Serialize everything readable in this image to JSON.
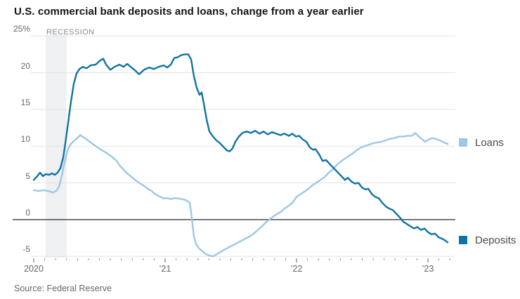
{
  "title": "U.S. commercial bank deposits and loans, change from a year earlier",
  "source": "Source: Federal Reserve",
  "legend": {
    "loans_label": "Loans",
    "deposits_label": "Deposits"
  },
  "colors": {
    "loans": "#9cc7e6",
    "deposits": "#1173a2",
    "recession_band": "#eef0f1",
    "gridline": "#e3e3e3",
    "zero_line": "#4a4a4a",
    "tick": "#8f8f8f"
  },
  "chart_data": {
    "type": "line",
    "title": "U.S. commercial bank deposits and loans, change from a year earlier",
    "xlabel": "",
    "ylabel": "percent change from a year earlier",
    "x_range": [
      2020.0,
      2023.21
    ],
    "y_range": [
      -5.4,
      25.3
    ],
    "grid": "horizontal",
    "legend_position": "right-of-line-ends",
    "recession": {
      "label": "RECESSION",
      "start": 2020.09,
      "end": 2020.25
    },
    "y_axis": {
      "ticks": [
        {
          "value": 25,
          "label": "25%"
        },
        {
          "value": 20,
          "label": "20"
        },
        {
          "value": 15,
          "label": "15"
        },
        {
          "value": 10,
          "label": "10"
        },
        {
          "value": 5,
          "label": "5"
        },
        {
          "value": 0,
          "label": "0"
        },
        {
          "value": -5,
          "label": "-5"
        }
      ]
    },
    "x_axis": {
      "minor_tick_months": 1,
      "year_labels": [
        {
          "t": 2020,
          "label": "2020"
        },
        {
          "t": 2021,
          "label": "’21"
        },
        {
          "t": 2022,
          "label": "’22"
        },
        {
          "t": 2023,
          "label": "’23"
        }
      ]
    },
    "series": [
      {
        "name": "Loans",
        "color": "#9cc7e6",
        "points": [
          [
            2020.0,
            4.0
          ],
          [
            2020.037,
            3.9
          ],
          [
            2020.075,
            4.0
          ],
          [
            2020.112,
            3.9
          ],
          [
            2020.144,
            3.7
          ],
          [
            2020.171,
            3.9
          ],
          [
            2020.193,
            4.5
          ],
          [
            2020.214,
            6.0
          ],
          [
            2020.235,
            7.8
          ],
          [
            2020.257,
            9.4
          ],
          [
            2020.278,
            10.2
          ],
          [
            2020.305,
            10.7
          ],
          [
            2020.332,
            11.1
          ],
          [
            2020.353,
            11.5
          ],
          [
            2020.38,
            11.2
          ],
          [
            2020.412,
            10.8
          ],
          [
            2020.449,
            10.3
          ],
          [
            2020.487,
            9.8
          ],
          [
            2020.524,
            9.4
          ],
          [
            2020.561,
            9.0
          ],
          [
            2020.599,
            8.5
          ],
          [
            2020.631,
            8.0
          ],
          [
            2020.652,
            7.4
          ],
          [
            2020.684,
            6.8
          ],
          [
            2020.711,
            6.3
          ],
          [
            2020.738,
            5.9
          ],
          [
            2020.765,
            5.5
          ],
          [
            2020.802,
            5.0
          ],
          [
            2020.84,
            4.6
          ],
          [
            2020.877,
            4.1
          ],
          [
            2020.898,
            3.9
          ],
          [
            2020.914,
            3.6
          ],
          [
            2020.952,
            3.2
          ],
          [
            2020.989,
            2.9
          ],
          [
            2021.016,
            2.9
          ],
          [
            2021.043,
            2.8
          ],
          [
            2021.07,
            2.9
          ],
          [
            2021.096,
            2.9
          ],
          [
            2021.123,
            2.8
          ],
          [
            2021.15,
            2.7
          ],
          [
            2021.171,
            2.5
          ],
          [
            2021.187,
            2.3
          ],
          [
            2021.198,
            1.0
          ],
          [
            2021.209,
            -0.8
          ],
          [
            2021.219,
            -2.3
          ],
          [
            2021.235,
            -3.3
          ],
          [
            2021.257,
            -3.9
          ],
          [
            2021.283,
            -4.3
          ],
          [
            2021.31,
            -4.7
          ],
          [
            2021.337,
            -4.9
          ],
          [
            2021.364,
            -5.0
          ],
          [
            2021.385,
            -4.8
          ],
          [
            2021.412,
            -4.5
          ],
          [
            2021.449,
            -4.1
          ],
          [
            2021.481,
            -3.8
          ],
          [
            2021.513,
            -3.5
          ],
          [
            2021.545,
            -3.2
          ],
          [
            2021.577,
            -2.9
          ],
          [
            2021.609,
            -2.6
          ],
          [
            2021.642,
            -2.3
          ],
          [
            2021.674,
            -1.9
          ],
          [
            2021.706,
            -1.4
          ],
          [
            2021.738,
            -0.9
          ],
          [
            2021.765,
            -0.4
          ],
          [
            2021.786,
            -0.1
          ],
          [
            2021.813,
            0.3
          ],
          [
            2021.845,
            0.7
          ],
          [
            2021.877,
            1.0
          ],
          [
            2021.909,
            1.5
          ],
          [
            2021.941,
            1.9
          ],
          [
            2021.973,
            2.4
          ],
          [
            2022.0,
            3.1
          ],
          [
            2022.027,
            3.4
          ],
          [
            2022.059,
            3.8
          ],
          [
            2022.091,
            4.2
          ],
          [
            2022.123,
            4.7
          ],
          [
            2022.15,
            5.0
          ],
          [
            2022.182,
            5.4
          ],
          [
            2022.214,
            5.8
          ],
          [
            2022.246,
            6.4
          ],
          [
            2022.283,
            7.0
          ],
          [
            2022.31,
            7.5
          ],
          [
            2022.342,
            8.0
          ],
          [
            2022.369,
            8.3
          ],
          [
            2022.401,
            8.7
          ],
          [
            2022.428,
            9.0
          ],
          [
            2022.455,
            9.4
          ],
          [
            2022.487,
            9.8
          ],
          [
            2022.519,
            10.0
          ],
          [
            2022.551,
            10.2
          ],
          [
            2022.583,
            10.4
          ],
          [
            2022.615,
            10.5
          ],
          [
            2022.647,
            10.6
          ],
          [
            2022.679,
            10.8
          ],
          [
            2022.711,
            11.0
          ],
          [
            2022.743,
            11.1
          ],
          [
            2022.781,
            11.3
          ],
          [
            2022.813,
            11.3
          ],
          [
            2022.845,
            11.4
          ],
          [
            2022.877,
            11.4
          ],
          [
            2022.904,
            11.8
          ],
          [
            2022.925,
            11.4
          ],
          [
            2022.952,
            11.0
          ],
          [
            2022.979,
            10.6
          ],
          [
            2023.005,
            10.9
          ],
          [
            2023.032,
            11.1
          ],
          [
            2023.059,
            11.0
          ],
          [
            2023.086,
            10.8
          ],
          [
            2023.112,
            10.6
          ],
          [
            2023.134,
            10.4
          ],
          [
            2023.15,
            10.3
          ]
        ]
      },
      {
        "name": "Deposits",
        "color": "#1173a2",
        "points": [
          [
            2020.0,
            5.4
          ],
          [
            2020.027,
            5.9
          ],
          [
            2020.048,
            6.4
          ],
          [
            2020.07,
            5.9
          ],
          [
            2020.091,
            6.2
          ],
          [
            2020.118,
            6.1
          ],
          [
            2020.139,
            6.3
          ],
          [
            2020.16,
            6.1
          ],
          [
            2020.182,
            6.4
          ],
          [
            2020.203,
            7.0
          ],
          [
            2020.225,
            8.5
          ],
          [
            2020.241,
            10.5
          ],
          [
            2020.262,
            13.2
          ],
          [
            2020.283,
            16.0
          ],
          [
            2020.305,
            18.5
          ],
          [
            2020.326,
            19.9
          ],
          [
            2020.348,
            20.5
          ],
          [
            2020.374,
            20.8
          ],
          [
            2020.401,
            20.6
          ],
          [
            2020.433,
            21.0
          ],
          [
            2020.471,
            21.1
          ],
          [
            2020.508,
            21.7
          ],
          [
            2020.529,
            21.9
          ],
          [
            2020.551,
            21.1
          ],
          [
            2020.583,
            20.4
          ],
          [
            2020.615,
            20.8
          ],
          [
            2020.652,
            21.1
          ],
          [
            2020.684,
            20.8
          ],
          [
            2020.711,
            21.2
          ],
          [
            2020.738,
            20.8
          ],
          [
            2020.765,
            20.4
          ],
          [
            2020.802,
            19.8
          ],
          [
            2020.84,
            20.4
          ],
          [
            2020.877,
            20.7
          ],
          [
            2020.914,
            20.5
          ],
          [
            2020.952,
            20.8
          ],
          [
            2020.989,
            21.0
          ],
          [
            2021.016,
            20.7
          ],
          [
            2021.043,
            21.1
          ],
          [
            2021.07,
            22.0
          ],
          [
            2021.096,
            22.1
          ],
          [
            2021.123,
            22.4
          ],
          [
            2021.15,
            22.5
          ],
          [
            2021.176,
            22.5
          ],
          [
            2021.198,
            21.8
          ],
          [
            2021.219,
            19.5
          ],
          [
            2021.241,
            17.9
          ],
          [
            2021.262,
            17.0
          ],
          [
            2021.278,
            17.3
          ],
          [
            2021.294,
            15.8
          ],
          [
            2021.316,
            13.6
          ],
          [
            2021.337,
            12.0
          ],
          [
            2021.364,
            11.3
          ],
          [
            2021.39,
            10.8
          ],
          [
            2021.417,
            10.4
          ],
          [
            2021.444,
            9.9
          ],
          [
            2021.471,
            9.4
          ],
          [
            2021.492,
            9.3
          ],
          [
            2021.513,
            9.7
          ],
          [
            2021.535,
            10.6
          ],
          [
            2021.561,
            11.3
          ],
          [
            2021.588,
            11.8
          ],
          [
            2021.62,
            12.0
          ],
          [
            2021.652,
            11.8
          ],
          [
            2021.684,
            12.1
          ],
          [
            2021.717,
            11.7
          ],
          [
            2021.749,
            12.0
          ],
          [
            2021.781,
            11.6
          ],
          [
            2021.813,
            11.9
          ],
          [
            2021.845,
            11.7
          ],
          [
            2021.877,
            11.5
          ],
          [
            2021.909,
            11.7
          ],
          [
            2021.941,
            11.4
          ],
          [
            2021.968,
            11.7
          ],
          [
            2021.995,
            11.3
          ],
          [
            2022.021,
            11.4
          ],
          [
            2022.048,
            10.9
          ],
          [
            2022.075,
            10.6
          ],
          [
            2022.102,
            9.8
          ],
          [
            2022.128,
            9.5
          ],
          [
            2022.144,
            9.6
          ],
          [
            2022.171,
            8.9
          ],
          [
            2022.198,
            8.0
          ],
          [
            2022.225,
            8.1
          ],
          [
            2022.251,
            7.6
          ],
          [
            2022.283,
            7.0
          ],
          [
            2022.31,
            6.5
          ],
          [
            2022.342,
            5.9
          ],
          [
            2022.369,
            5.4
          ],
          [
            2022.39,
            5.7
          ],
          [
            2022.417,
            5.2
          ],
          [
            2022.444,
            4.9
          ],
          [
            2022.471,
            5.0
          ],
          [
            2022.497,
            4.4
          ],
          [
            2022.524,
            4.1
          ],
          [
            2022.546,
            4.2
          ],
          [
            2022.572,
            3.5
          ],
          [
            2022.599,
            3.1
          ],
          [
            2022.626,
            2.9
          ],
          [
            2022.652,
            2.3
          ],
          [
            2022.679,
            1.8
          ],
          [
            2022.706,
            1.5
          ],
          [
            2022.733,
            1.3
          ],
          [
            2022.759,
            0.8
          ],
          [
            2022.786,
            0.3
          ],
          [
            2022.813,
            -0.3
          ],
          [
            2022.84,
            -0.6
          ],
          [
            2022.866,
            -0.9
          ],
          [
            2022.893,
            -1.2
          ],
          [
            2022.92,
            -1.0
          ],
          [
            2022.947,
            -1.4
          ],
          [
            2022.973,
            -1.2
          ],
          [
            2023.0,
            -1.7
          ],
          [
            2023.027,
            -2.0
          ],
          [
            2023.054,
            -1.9
          ],
          [
            2023.08,
            -2.4
          ],
          [
            2023.107,
            -2.6
          ],
          [
            2023.128,
            -2.8
          ],
          [
            2023.15,
            -3.1
          ]
        ]
      }
    ]
  }
}
